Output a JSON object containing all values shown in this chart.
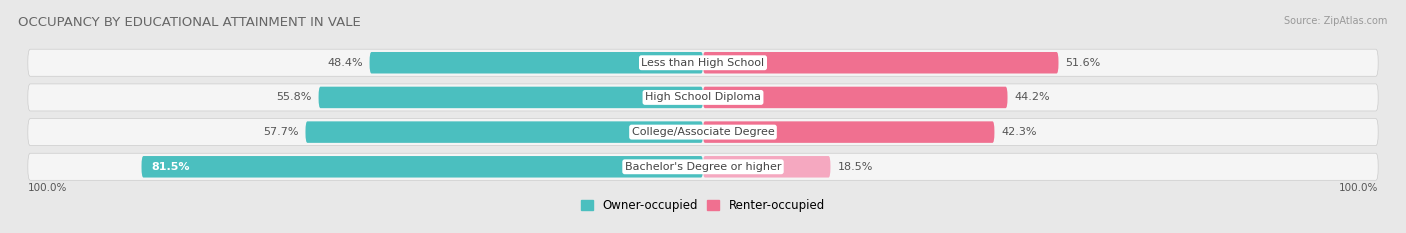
{
  "title": "OCCUPANCY BY EDUCATIONAL ATTAINMENT IN VALE",
  "source": "Source: ZipAtlas.com",
  "categories": [
    "Less than High School",
    "High School Diploma",
    "College/Associate Degree",
    "Bachelor's Degree or higher"
  ],
  "owner_pct": [
    48.4,
    55.8,
    57.7,
    81.5
  ],
  "renter_pct": [
    51.6,
    44.2,
    42.3,
    18.5
  ],
  "owner_color": "#4bbfbf",
  "renter_color": "#f07090",
  "renter_color_light": "#f5a8c0",
  "bg_color": "#e8e8e8",
  "row_bg_color": "#f5f5f5",
  "title_color": "#666666",
  "label_color": "#444444",
  "pct_color_dark": "#555555",
  "pct_color_white": "#ffffff",
  "title_fontsize": 9.5,
  "label_fontsize": 8,
  "pct_fontsize": 8,
  "axis_label_left": "100.0%",
  "axis_label_right": "100.0%"
}
